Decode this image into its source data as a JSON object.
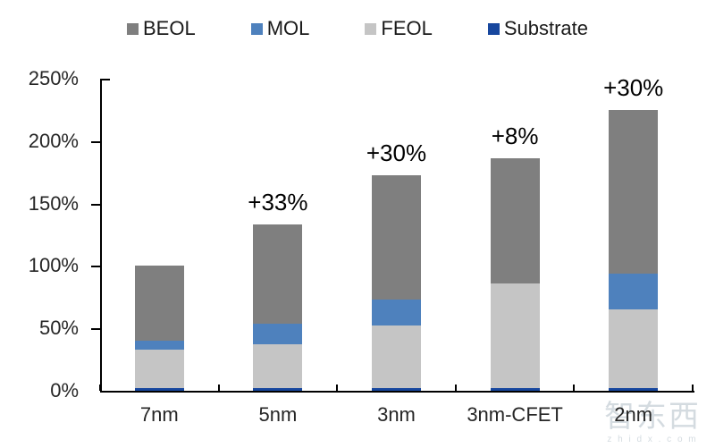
{
  "watermark": {
    "logo": "智东西",
    "domain": "z h i d x . c o m"
  },
  "chart_data": {
    "type": "bar",
    "stacked": true,
    "title": "",
    "xlabel": "",
    "ylabel": "",
    "categories": [
      "7nm",
      "5nm",
      "3nm",
      "3nm-CFET",
      "2nm"
    ],
    "series": [
      {
        "name": "Substrate",
        "color": "#17479E",
        "values": [
          2,
          2,
          2,
          2,
          2
        ]
      },
      {
        "name": "FEOL",
        "color": "#C5C5C5",
        "values": [
          31,
          35,
          50,
          84,
          63
        ]
      },
      {
        "name": "MOL",
        "color": "#4E81BD",
        "values": [
          7,
          17,
          21,
          0,
          29
        ]
      },
      {
        "name": "BEOL",
        "color": "#7F7F7F",
        "values": [
          60,
          79,
          100,
          100,
          131
        ]
      }
    ],
    "bar_totals": [
      100,
      133,
      173,
      186,
      225
    ],
    "annotations": [
      "",
      "+33%",
      "+30%",
      "+8%",
      "+30%"
    ],
    "legend_order": [
      "BEOL",
      "MOL",
      "FEOL",
      "Substrate"
    ],
    "legend_position": "top",
    "y_tick_labels": [
      "0%",
      "50%",
      "100%",
      "150%",
      "200%",
      "250%"
    ],
    "y_tick_values": [
      0,
      50,
      100,
      150,
      200,
      250
    ],
    "ylim": [
      0,
      250
    ],
    "grid": "off",
    "axis_color": "#000000",
    "text_color": "#262626"
  }
}
